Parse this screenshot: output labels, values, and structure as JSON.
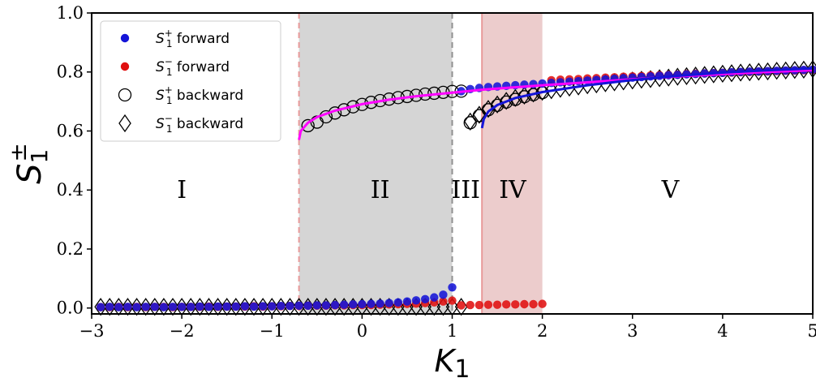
{
  "chart_data": {
    "type": "scatter",
    "xlabel": {
      "main": "K",
      "sub": "1"
    },
    "ylabel": {
      "main": "S",
      "sub": "1",
      "sup": "±"
    },
    "xlim": [
      -3,
      5
    ],
    "ylim": [
      -0.02,
      1.0
    ],
    "xticks": [
      -3,
      -2,
      -1,
      0,
      1,
      2,
      3,
      4,
      5
    ],
    "xtick_labels": [
      "−3",
      "−2",
      "−1",
      "0",
      "1",
      "2",
      "3",
      "4",
      "5"
    ],
    "yticks": [
      0.0,
      0.2,
      0.4,
      0.6,
      0.8,
      1.0
    ],
    "ytick_labels": [
      "0.0",
      "0.2",
      "0.4",
      "0.6",
      "0.8",
      "1.0"
    ],
    "grid": false,
    "legend_position": "top-left",
    "shaded_regions": [
      {
        "x0": -0.7,
        "x1": 1.0,
        "color": "#d5d5d5",
        "opacity": 1.0
      },
      {
        "x0": 1.33,
        "x1": 2.0,
        "color": "#eccccc",
        "opacity": 1.0
      }
    ],
    "vertical_lines": [
      {
        "x": -0.7,
        "color": "#e89a9a",
        "style": "dashed"
      },
      {
        "x": 1.0,
        "color": "#909090",
        "style": "dashed"
      },
      {
        "x": 1.33,
        "color": "#e89a9a",
        "style": "solid"
      }
    ],
    "region_labels": [
      {
        "text": "I",
        "x": -2.0,
        "y": 0.4
      },
      {
        "text": "II",
        "x": 0.2,
        "y": 0.4
      },
      {
        "text": "III",
        "x": 1.15,
        "y": 0.4
      },
      {
        "text": "IV",
        "x": 1.67,
        "y": 0.4
      },
      {
        "text": "V",
        "x": 3.42,
        "y": 0.4
      }
    ],
    "legend": [
      {
        "main": "S",
        "sub": "1",
        "sup": "+",
        "suffix": " forward",
        "marker": "dot",
        "color": "#1515d8"
      },
      {
        "main": "S",
        "sub": "1",
        "sup": "−",
        "suffix": " forward",
        "marker": "dot",
        "color": "#e01010"
      },
      {
        "main": "S",
        "sub": "1",
        "sup": "+",
        "suffix": " backward",
        "marker": "circle",
        "color": "#000000"
      },
      {
        "main": "S",
        "sub": "1",
        "sup": "−",
        "suffix": " backward",
        "marker": "diamond",
        "color": "#000000"
      }
    ],
    "theory_curves": [
      {
        "name": "",
        "color": "#ff00ff",
        "x": [
          -0.7,
          -0.68,
          -0.6,
          -0.5,
          -0.3,
          0.0,
          0.3,
          0.6,
          1.0,
          1.33,
          1.6,
          2.0,
          2.5,
          3.0,
          3.5,
          4.0,
          4.5,
          5.0
        ],
        "y": [
          0.57,
          0.6,
          0.628,
          0.647,
          0.669,
          0.691,
          0.706,
          0.718,
          0.73,
          0.74,
          0.746,
          0.755,
          0.765,
          0.775,
          0.785,
          0.793,
          0.8,
          0.806
        ]
      },
      {
        "name": "",
        "color": "#1515d8",
        "x": [
          1.33,
          1.35,
          1.4,
          1.5,
          1.7,
          2.0,
          2.5,
          3.0,
          3.5,
          4.0,
          4.5,
          5.0
        ],
        "y": [
          0.61,
          0.64,
          0.666,
          0.688,
          0.712,
          0.732,
          0.755,
          0.773,
          0.787,
          0.798,
          0.806,
          0.812
        ]
      }
    ],
    "series": [
      {
        "name": "S1+ forward",
        "marker": "dot",
        "color": "#1515d8",
        "x": [
          -2.9,
          -2.8,
          -2.7,
          -2.6,
          -2.5,
          -2.4,
          -2.3,
          -2.2,
          -2.1,
          -2.0,
          -1.9,
          -1.8,
          -1.7,
          -1.6,
          -1.5,
          -1.4,
          -1.3,
          -1.2,
          -1.1,
          -1.0,
          -0.9,
          -0.8,
          -0.7,
          -0.6,
          -0.5,
          -0.4,
          -0.3,
          -0.2,
          -0.1,
          0.0,
          0.1,
          0.2,
          0.3,
          0.4,
          0.5,
          0.6,
          0.7,
          0.8,
          0.9,
          1.0,
          1.1,
          1.2,
          1.3,
          1.4,
          1.5,
          1.6,
          1.7,
          1.8,
          1.9,
          2.0,
          2.1,
          2.2,
          2.3,
          2.4,
          2.5,
          2.6,
          2.7,
          2.8,
          2.9,
          3.0,
          3.1,
          3.2,
          3.3,
          3.4,
          3.5,
          3.6,
          3.7,
          3.8,
          3.9,
          4.0,
          4.1,
          4.2,
          4.3,
          4.4,
          4.5,
          4.6,
          4.7,
          4.8,
          4.9,
          5.0
        ],
        "y": [
          0.003,
          0.004,
          0.003,
          0.004,
          0.003,
          0.004,
          0.004,
          0.003,
          0.004,
          0.004,
          0.004,
          0.005,
          0.004,
          0.005,
          0.005,
          0.005,
          0.006,
          0.005,
          0.006,
          0.006,
          0.007,
          0.007,
          0.008,
          0.008,
          0.009,
          0.009,
          0.01,
          0.011,
          0.012,
          0.013,
          0.014,
          0.015,
          0.017,
          0.019,
          0.022,
          0.026,
          0.03,
          0.036,
          0.045,
          0.07,
          0.735,
          0.742,
          0.746,
          0.749,
          0.751,
          0.753,
          0.755,
          0.757,
          0.759,
          0.761,
          0.763,
          0.765,
          0.767,
          0.769,
          0.771,
          0.773,
          0.775,
          0.777,
          0.779,
          0.781,
          0.783,
          0.785,
          0.787,
          0.789,
          0.79,
          0.792,
          0.793,
          0.795,
          0.796,
          0.797,
          0.799,
          0.8,
          0.801,
          0.802,
          0.803,
          0.804,
          0.805,
          0.806,
          0.807,
          0.808
        ]
      },
      {
        "name": "S1- forward",
        "marker": "dot",
        "color": "#e01010",
        "x": [
          -2.9,
          -2.8,
          -2.7,
          -2.6,
          -2.5,
          -2.4,
          -2.3,
          -2.2,
          -2.1,
          -2.0,
          -1.9,
          -1.8,
          -1.7,
          -1.6,
          -1.5,
          -1.4,
          -1.3,
          -1.2,
          -1.1,
          -1.0,
          -0.9,
          -0.8,
          -0.7,
          -0.6,
          -0.5,
          -0.4,
          -0.3,
          -0.2,
          -0.1,
          0.0,
          0.1,
          0.2,
          0.3,
          0.4,
          0.5,
          0.6,
          0.7,
          0.8,
          0.9,
          1.0,
          1.1,
          1.2,
          1.3,
          1.4,
          1.5,
          1.6,
          1.7,
          1.8,
          1.9,
          2.0,
          2.1,
          2.2,
          2.3,
          2.4,
          2.5,
          2.6,
          2.7,
          2.8,
          2.9,
          3.0,
          3.1,
          3.2,
          3.3,
          3.4,
          3.5,
          3.6,
          3.7,
          3.8,
          3.9,
          4.0,
          4.1,
          4.2,
          4.3,
          4.4,
          4.5,
          4.6,
          4.7,
          4.8,
          4.9,
          5.0
        ],
        "y": [
          0.003,
          0.003,
          0.004,
          0.003,
          0.004,
          0.003,
          0.004,
          0.004,
          0.003,
          0.004,
          0.004,
          0.004,
          0.005,
          0.004,
          0.005,
          0.005,
          0.005,
          0.006,
          0.005,
          0.006,
          0.006,
          0.007,
          0.007,
          0.008,
          0.008,
          0.008,
          0.009,
          0.009,
          0.01,
          0.01,
          0.01,
          0.011,
          0.012,
          0.013,
          0.014,
          0.015,
          0.017,
          0.019,
          0.022,
          0.025,
          0.009,
          0.01,
          0.01,
          0.011,
          0.011,
          0.012,
          0.012,
          0.013,
          0.013,
          0.014,
          0.772,
          0.774,
          0.775,
          0.776,
          0.778,
          0.779,
          0.781,
          0.782,
          0.784,
          0.785,
          0.786,
          0.788,
          0.789,
          0.79,
          0.791,
          0.793,
          0.794,
          0.795,
          0.796,
          0.797,
          0.798,
          0.799,
          0.8,
          0.801,
          0.802,
          0.803,
          0.804,
          0.805,
          0.806,
          0.807
        ]
      },
      {
        "name": "S1+ backward",
        "marker": "circle",
        "color": "#000000",
        "x": [
          -0.6,
          -0.5,
          -0.4,
          -0.3,
          -0.2,
          -0.1,
          0.0,
          0.1,
          0.2,
          0.3,
          0.4,
          0.5,
          0.6,
          0.7,
          0.8,
          0.9,
          1.0,
          1.1,
          1.2,
          1.3,
          1.4,
          1.5,
          1.6,
          1.7,
          1.8,
          1.9,
          2.0
        ],
        "y": [
          0.618,
          0.63,
          0.648,
          0.661,
          0.672,
          0.682,
          0.69,
          0.697,
          0.703,
          0.708,
          0.713,
          0.717,
          0.721,
          0.725,
          0.728,
          0.731,
          0.734,
          0.735,
          0.628,
          0.652,
          0.672,
          0.687,
          0.698,
          0.707,
          0.716,
          0.723,
          0.73
        ]
      },
      {
        "name": "S1- backward",
        "marker": "diamond",
        "color": "#000000",
        "x": [
          -2.9,
          -2.8,
          -2.7,
          -2.6,
          -2.5,
          -2.4,
          -2.3,
          -2.2,
          -2.1,
          -2.0,
          -1.9,
          -1.8,
          -1.7,
          -1.6,
          -1.5,
          -1.4,
          -1.3,
          -1.2,
          -1.1,
          -1.0,
          -0.9,
          -0.8,
          -0.7,
          -0.6,
          -0.5,
          -0.4,
          -0.3,
          -0.2,
          -0.1,
          0.0,
          0.1,
          0.2,
          0.3,
          0.4,
          0.5,
          0.6,
          0.7,
          0.8,
          0.9,
          1.0,
          1.1,
          1.2,
          1.3,
          1.4,
          1.5,
          1.6,
          1.7,
          1.8,
          1.9,
          2.0,
          2.1,
          2.2,
          2.3,
          2.4,
          2.5,
          2.6,
          2.7,
          2.8,
          2.9,
          3.0,
          3.1,
          3.2,
          3.3,
          3.4,
          3.5,
          3.6,
          3.7,
          3.8,
          3.9,
          4.0,
          4.1,
          4.2,
          4.3,
          4.4,
          4.5,
          4.6,
          4.7,
          4.8,
          4.9,
          5.0
        ],
        "y": [
          0.004,
          0.004,
          0.004,
          0.004,
          0.004,
          0.004,
          0.004,
          0.004,
          0.004,
          0.004,
          0.004,
          0.004,
          0.004,
          0.004,
          0.004,
          0.004,
          0.004,
          0.004,
          0.004,
          0.004,
          0.004,
          0.004,
          0.004,
          0.004,
          0.004,
          0.004,
          0.004,
          0.004,
          0.004,
          0.004,
          0.004,
          0.004,
          0.004,
          0.004,
          0.004,
          0.004,
          0.004,
          0.004,
          0.004,
          0.004,
          0.004,
          0.632,
          0.655,
          0.675,
          0.69,
          0.702,
          0.712,
          0.72,
          0.727,
          0.733,
          0.738,
          0.743,
          0.747,
          0.751,
          0.755,
          0.758,
          0.762,
          0.765,
          0.768,
          0.771,
          0.774,
          0.776,
          0.779,
          0.781,
          0.784,
          0.786,
          0.788,
          0.79,
          0.792,
          0.794,
          0.796,
          0.798,
          0.799,
          0.801,
          0.802,
          0.804,
          0.805,
          0.807,
          0.808,
          0.81
        ]
      }
    ]
  }
}
